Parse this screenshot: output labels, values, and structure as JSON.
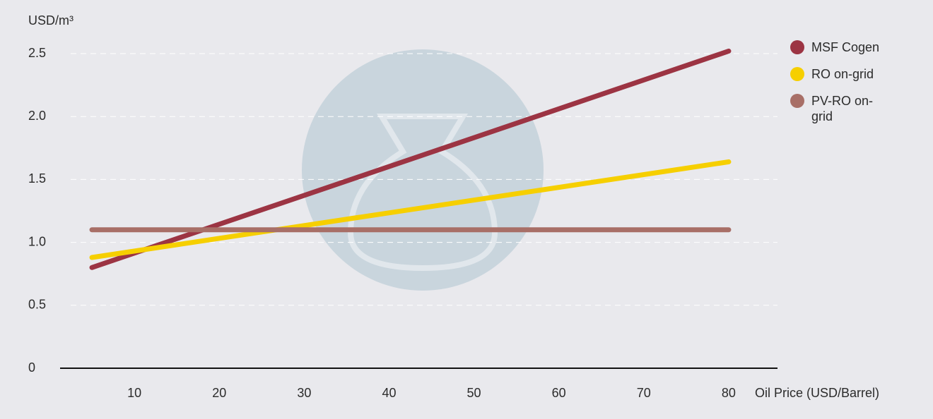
{
  "chart_data": {
    "type": "line",
    "y_label": "USD/m³",
    "x_label": "Oil Price (USD/Barrel)",
    "x": [
      5,
      80
    ],
    "series": [
      {
        "name": "MSF Cogen",
        "color": "#9c3443",
        "values": [
          0.8,
          2.52
        ]
      },
      {
        "name": "RO on-grid",
        "color": "#f6cf00",
        "values": [
          0.88,
          1.64
        ]
      },
      {
        "name": "PV-RO on-grid",
        "color": "#a86f67",
        "values": [
          1.1,
          1.1
        ]
      }
    ],
    "xlim": [
      1.25,
      85.75
    ],
    "xticks": [
      10,
      20,
      30,
      40,
      50,
      60,
      70,
      80
    ],
    "ylim": [
      0,
      2.5
    ],
    "yticks": [
      0,
      0.5,
      {
        "value": 1,
        "label": "1.0"
      },
      1.5,
      {
        "value": 2,
        "label": "2.0"
      },
      2.5
    ],
    "grid": true,
    "legend": "right"
  }
}
